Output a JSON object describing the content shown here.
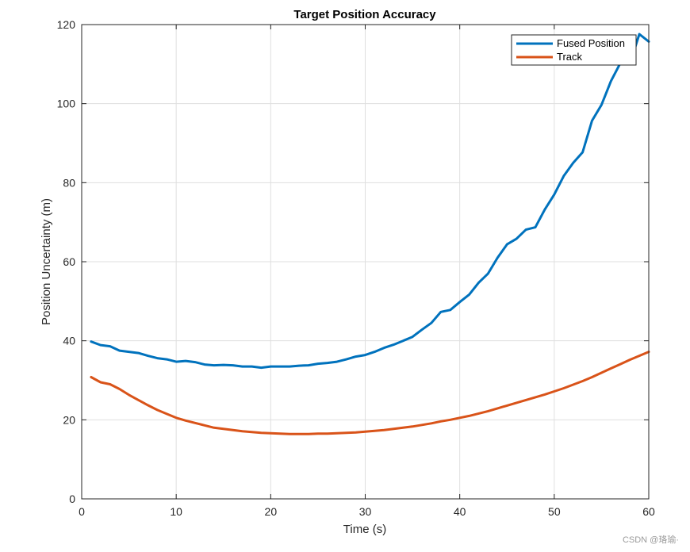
{
  "chart_data": {
    "type": "line",
    "title": "Target Position Accuracy",
    "xlabel": "Time (s)",
    "ylabel": "Position Uncertainty (m)",
    "xlim": [
      0,
      60
    ],
    "ylim": [
      0,
      120
    ],
    "xticks": [
      "0",
      "10",
      "20",
      "30",
      "40",
      "50",
      "60"
    ],
    "yticks": [
      "0",
      "20",
      "40",
      "60",
      "80",
      "100",
      "120"
    ],
    "grid": true,
    "legend_position": "top-right",
    "series": [
      {
        "name": "Fused Position",
        "color": "#0072BD",
        "x": [
          1,
          2,
          3,
          4,
          5,
          6,
          7,
          8,
          9,
          10,
          11,
          12,
          13,
          14,
          15,
          16,
          17,
          18,
          19,
          20,
          21,
          22,
          23,
          24,
          25,
          26,
          27,
          28,
          29,
          30,
          31,
          32,
          33,
          34,
          35,
          36,
          37,
          38,
          39,
          40,
          41,
          42,
          43,
          44,
          45,
          46,
          47,
          48,
          49,
          50,
          51,
          52,
          53,
          54,
          55,
          56,
          57,
          58,
          59,
          60
        ],
        "y": [
          39.8,
          38.9,
          38.6,
          37.5,
          37.2,
          36.9,
          36.2,
          35.6,
          35.3,
          34.7,
          34.9,
          34.6,
          34.0,
          33.8,
          33.9,
          33.8,
          33.5,
          33.5,
          33.2,
          33.5,
          33.5,
          33.5,
          33.7,
          33.8,
          34.2,
          34.4,
          34.7,
          35.3,
          36.0,
          36.4,
          37.2,
          38.2,
          39.0,
          40.0,
          41.0,
          42.8,
          44.5,
          47.3,
          47.8,
          49.8,
          51.7,
          54.7,
          57.0,
          61.0,
          64.4,
          65.8,
          68.1,
          68.7,
          73.2,
          77.0,
          81.7,
          85.0,
          87.7,
          95.7,
          99.7,
          105.7,
          110.3,
          110.0,
          117.6,
          115.7
        ]
      },
      {
        "name": "Track",
        "color": "#D95319",
        "x": [
          1,
          2,
          3,
          4,
          5,
          6,
          7,
          8,
          9,
          10,
          11,
          12,
          13,
          14,
          15,
          16,
          17,
          18,
          19,
          20,
          21,
          22,
          23,
          24,
          25,
          26,
          27,
          28,
          29,
          30,
          31,
          32,
          33,
          34,
          35,
          36,
          37,
          38,
          39,
          40,
          41,
          42,
          43,
          44,
          45,
          46,
          47,
          48,
          49,
          50,
          51,
          52,
          53,
          54,
          55,
          56,
          57,
          58,
          59,
          60
        ],
        "y": [
          30.8,
          29.5,
          29.0,
          27.8,
          26.3,
          25.0,
          23.7,
          22.5,
          21.5,
          20.5,
          19.8,
          19.2,
          18.6,
          18.0,
          17.7,
          17.4,
          17.1,
          16.9,
          16.7,
          16.6,
          16.5,
          16.4,
          16.4,
          16.4,
          16.5,
          16.5,
          16.6,
          16.7,
          16.8,
          17.0,
          17.2,
          17.4,
          17.7,
          18.0,
          18.3,
          18.7,
          19.1,
          19.6,
          20.0,
          20.5,
          21.0,
          21.6,
          22.2,
          22.9,
          23.6,
          24.3,
          25.0,
          25.7,
          26.4,
          27.2,
          28.0,
          28.9,
          29.8,
          30.8,
          31.9,
          33.0,
          34.1,
          35.2,
          36.2,
          37.2
        ]
      }
    ]
  },
  "watermark": "CSDN @珞瑜·"
}
